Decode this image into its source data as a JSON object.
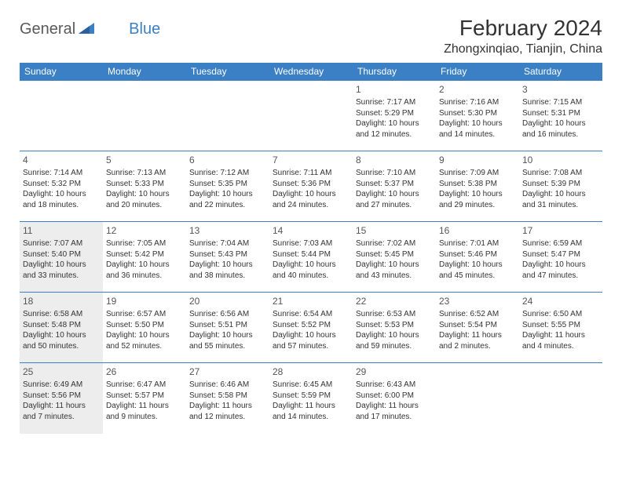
{
  "logo": {
    "text1": "General",
    "text2": "Blue"
  },
  "title": "February 2024",
  "location": "Zhongxinqiao, Tianjin, China",
  "colors": {
    "header_bg": "#3b7fc4",
    "header_text": "#ffffff",
    "cell_border": "#3b7fc4",
    "gray_cell_bg": "#ededed",
    "text_color": "#333333"
  },
  "weekdays": [
    "Sunday",
    "Monday",
    "Tuesday",
    "Wednesday",
    "Thursday",
    "Friday",
    "Saturday"
  ],
  "weeks": [
    [
      {
        "day": "",
        "lines": []
      },
      {
        "day": "",
        "lines": []
      },
      {
        "day": "",
        "lines": []
      },
      {
        "day": "",
        "lines": []
      },
      {
        "day": "1",
        "lines": [
          "Sunrise: 7:17 AM",
          "Sunset: 5:29 PM",
          "Daylight: 10 hours",
          "and 12 minutes."
        ]
      },
      {
        "day": "2",
        "lines": [
          "Sunrise: 7:16 AM",
          "Sunset: 5:30 PM",
          "Daylight: 10 hours",
          "and 14 minutes."
        ]
      },
      {
        "day": "3",
        "lines": [
          "Sunrise: 7:15 AM",
          "Sunset: 5:31 PM",
          "Daylight: 10 hours",
          "and 16 minutes."
        ]
      }
    ],
    [
      {
        "day": "4",
        "lines": [
          "Sunrise: 7:14 AM",
          "Sunset: 5:32 PM",
          "Daylight: 10 hours",
          "and 18 minutes."
        ]
      },
      {
        "day": "5",
        "lines": [
          "Sunrise: 7:13 AM",
          "Sunset: 5:33 PM",
          "Daylight: 10 hours",
          "and 20 minutes."
        ]
      },
      {
        "day": "6",
        "lines": [
          "Sunrise: 7:12 AM",
          "Sunset: 5:35 PM",
          "Daylight: 10 hours",
          "and 22 minutes."
        ]
      },
      {
        "day": "7",
        "lines": [
          "Sunrise: 7:11 AM",
          "Sunset: 5:36 PM",
          "Daylight: 10 hours",
          "and 24 minutes."
        ]
      },
      {
        "day": "8",
        "lines": [
          "Sunrise: 7:10 AM",
          "Sunset: 5:37 PM",
          "Daylight: 10 hours",
          "and 27 minutes."
        ]
      },
      {
        "day": "9",
        "lines": [
          "Sunrise: 7:09 AM",
          "Sunset: 5:38 PM",
          "Daylight: 10 hours",
          "and 29 minutes."
        ]
      },
      {
        "day": "10",
        "lines": [
          "Sunrise: 7:08 AM",
          "Sunset: 5:39 PM",
          "Daylight: 10 hours",
          "and 31 minutes."
        ]
      }
    ],
    [
      {
        "day": "11",
        "gray": true,
        "lines": [
          "Sunrise: 7:07 AM",
          "Sunset: 5:40 PM",
          "Daylight: 10 hours",
          "and 33 minutes."
        ]
      },
      {
        "day": "12",
        "lines": [
          "Sunrise: 7:05 AM",
          "Sunset: 5:42 PM",
          "Daylight: 10 hours",
          "and 36 minutes."
        ]
      },
      {
        "day": "13",
        "lines": [
          "Sunrise: 7:04 AM",
          "Sunset: 5:43 PM",
          "Daylight: 10 hours",
          "and 38 minutes."
        ]
      },
      {
        "day": "14",
        "lines": [
          "Sunrise: 7:03 AM",
          "Sunset: 5:44 PM",
          "Daylight: 10 hours",
          "and 40 minutes."
        ]
      },
      {
        "day": "15",
        "lines": [
          "Sunrise: 7:02 AM",
          "Sunset: 5:45 PM",
          "Daylight: 10 hours",
          "and 43 minutes."
        ]
      },
      {
        "day": "16",
        "lines": [
          "Sunrise: 7:01 AM",
          "Sunset: 5:46 PM",
          "Daylight: 10 hours",
          "and 45 minutes."
        ]
      },
      {
        "day": "17",
        "lines": [
          "Sunrise: 6:59 AM",
          "Sunset: 5:47 PM",
          "Daylight: 10 hours",
          "and 47 minutes."
        ]
      }
    ],
    [
      {
        "day": "18",
        "gray": true,
        "lines": [
          "Sunrise: 6:58 AM",
          "Sunset: 5:48 PM",
          "Daylight: 10 hours",
          "and 50 minutes."
        ]
      },
      {
        "day": "19",
        "lines": [
          "Sunrise: 6:57 AM",
          "Sunset: 5:50 PM",
          "Daylight: 10 hours",
          "and 52 minutes."
        ]
      },
      {
        "day": "20",
        "lines": [
          "Sunrise: 6:56 AM",
          "Sunset: 5:51 PM",
          "Daylight: 10 hours",
          "and 55 minutes."
        ]
      },
      {
        "day": "21",
        "lines": [
          "Sunrise: 6:54 AM",
          "Sunset: 5:52 PM",
          "Daylight: 10 hours",
          "and 57 minutes."
        ]
      },
      {
        "day": "22",
        "lines": [
          "Sunrise: 6:53 AM",
          "Sunset: 5:53 PM",
          "Daylight: 10 hours",
          "and 59 minutes."
        ]
      },
      {
        "day": "23",
        "lines": [
          "Sunrise: 6:52 AM",
          "Sunset: 5:54 PM",
          "Daylight: 11 hours",
          "and 2 minutes."
        ]
      },
      {
        "day": "24",
        "lines": [
          "Sunrise: 6:50 AM",
          "Sunset: 5:55 PM",
          "Daylight: 11 hours",
          "and 4 minutes."
        ]
      }
    ],
    [
      {
        "day": "25",
        "gray": true,
        "lines": [
          "Sunrise: 6:49 AM",
          "Sunset: 5:56 PM",
          "Daylight: 11 hours",
          "and 7 minutes."
        ]
      },
      {
        "day": "26",
        "lines": [
          "Sunrise: 6:47 AM",
          "Sunset: 5:57 PM",
          "Daylight: 11 hours",
          "and 9 minutes."
        ]
      },
      {
        "day": "27",
        "lines": [
          "Sunrise: 6:46 AM",
          "Sunset: 5:58 PM",
          "Daylight: 11 hours",
          "and 12 minutes."
        ]
      },
      {
        "day": "28",
        "lines": [
          "Sunrise: 6:45 AM",
          "Sunset: 5:59 PM",
          "Daylight: 11 hours",
          "and 14 minutes."
        ]
      },
      {
        "day": "29",
        "lines": [
          "Sunrise: 6:43 AM",
          "Sunset: 6:00 PM",
          "Daylight: 11 hours",
          "and 17 minutes."
        ]
      },
      {
        "day": "",
        "lines": []
      },
      {
        "day": "",
        "lines": []
      }
    ]
  ]
}
